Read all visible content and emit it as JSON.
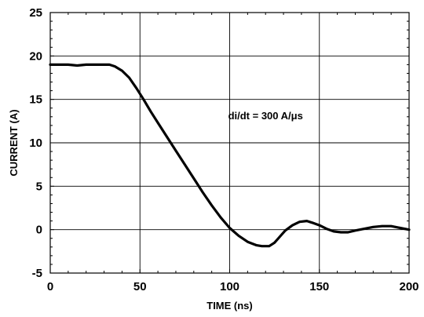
{
  "chart_data": {
    "type": "line",
    "title": "",
    "xlabel": "TIME (ns)",
    "ylabel": "CURRENT (A)",
    "xlim": [
      0,
      200
    ],
    "ylim": [
      -5,
      25
    ],
    "x_ticks": [
      0,
      50,
      100,
      150,
      200
    ],
    "y_ticks": [
      -5,
      0,
      5,
      10,
      15,
      20,
      25
    ],
    "x_tick_labels": [
      "0",
      "50",
      "100",
      "150",
      "200"
    ],
    "y_tick_labels": [
      "-5",
      "0",
      "5",
      "10",
      "15",
      "20",
      "25"
    ],
    "grid": true,
    "legend": "none",
    "annotation": "di/dt = 300 A/μs",
    "line_color": "#000000",
    "series": [
      {
        "x": [
          0,
          5,
          10,
          15,
          20,
          25,
          30,
          33,
          36,
          40,
          44,
          48,
          52,
          56,
          60,
          65,
          70,
          75,
          80,
          85,
          90,
          95,
          100,
          105,
          110,
          115,
          118,
          122,
          125,
          128,
          131,
          135,
          139,
          143,
          146,
          150,
          154,
          158,
          162,
          166,
          170,
          175,
          180,
          185,
          190,
          195,
          200
        ],
        "y": [
          19.0,
          19.0,
          19.0,
          18.9,
          19.0,
          19.0,
          19.0,
          19.0,
          18.8,
          18.3,
          17.5,
          16.3,
          15.0,
          13.6,
          12.3,
          10.7,
          9.1,
          7.5,
          5.9,
          4.3,
          2.8,
          1.4,
          0.2,
          -0.7,
          -1.4,
          -1.8,
          -1.9,
          -1.9,
          -1.5,
          -0.8,
          -0.1,
          0.5,
          0.9,
          1.0,
          0.8,
          0.5,
          0.1,
          -0.2,
          -0.3,
          -0.3,
          -0.1,
          0.1,
          0.3,
          0.4,
          0.4,
          0.2,
          0.0
        ]
      }
    ]
  }
}
